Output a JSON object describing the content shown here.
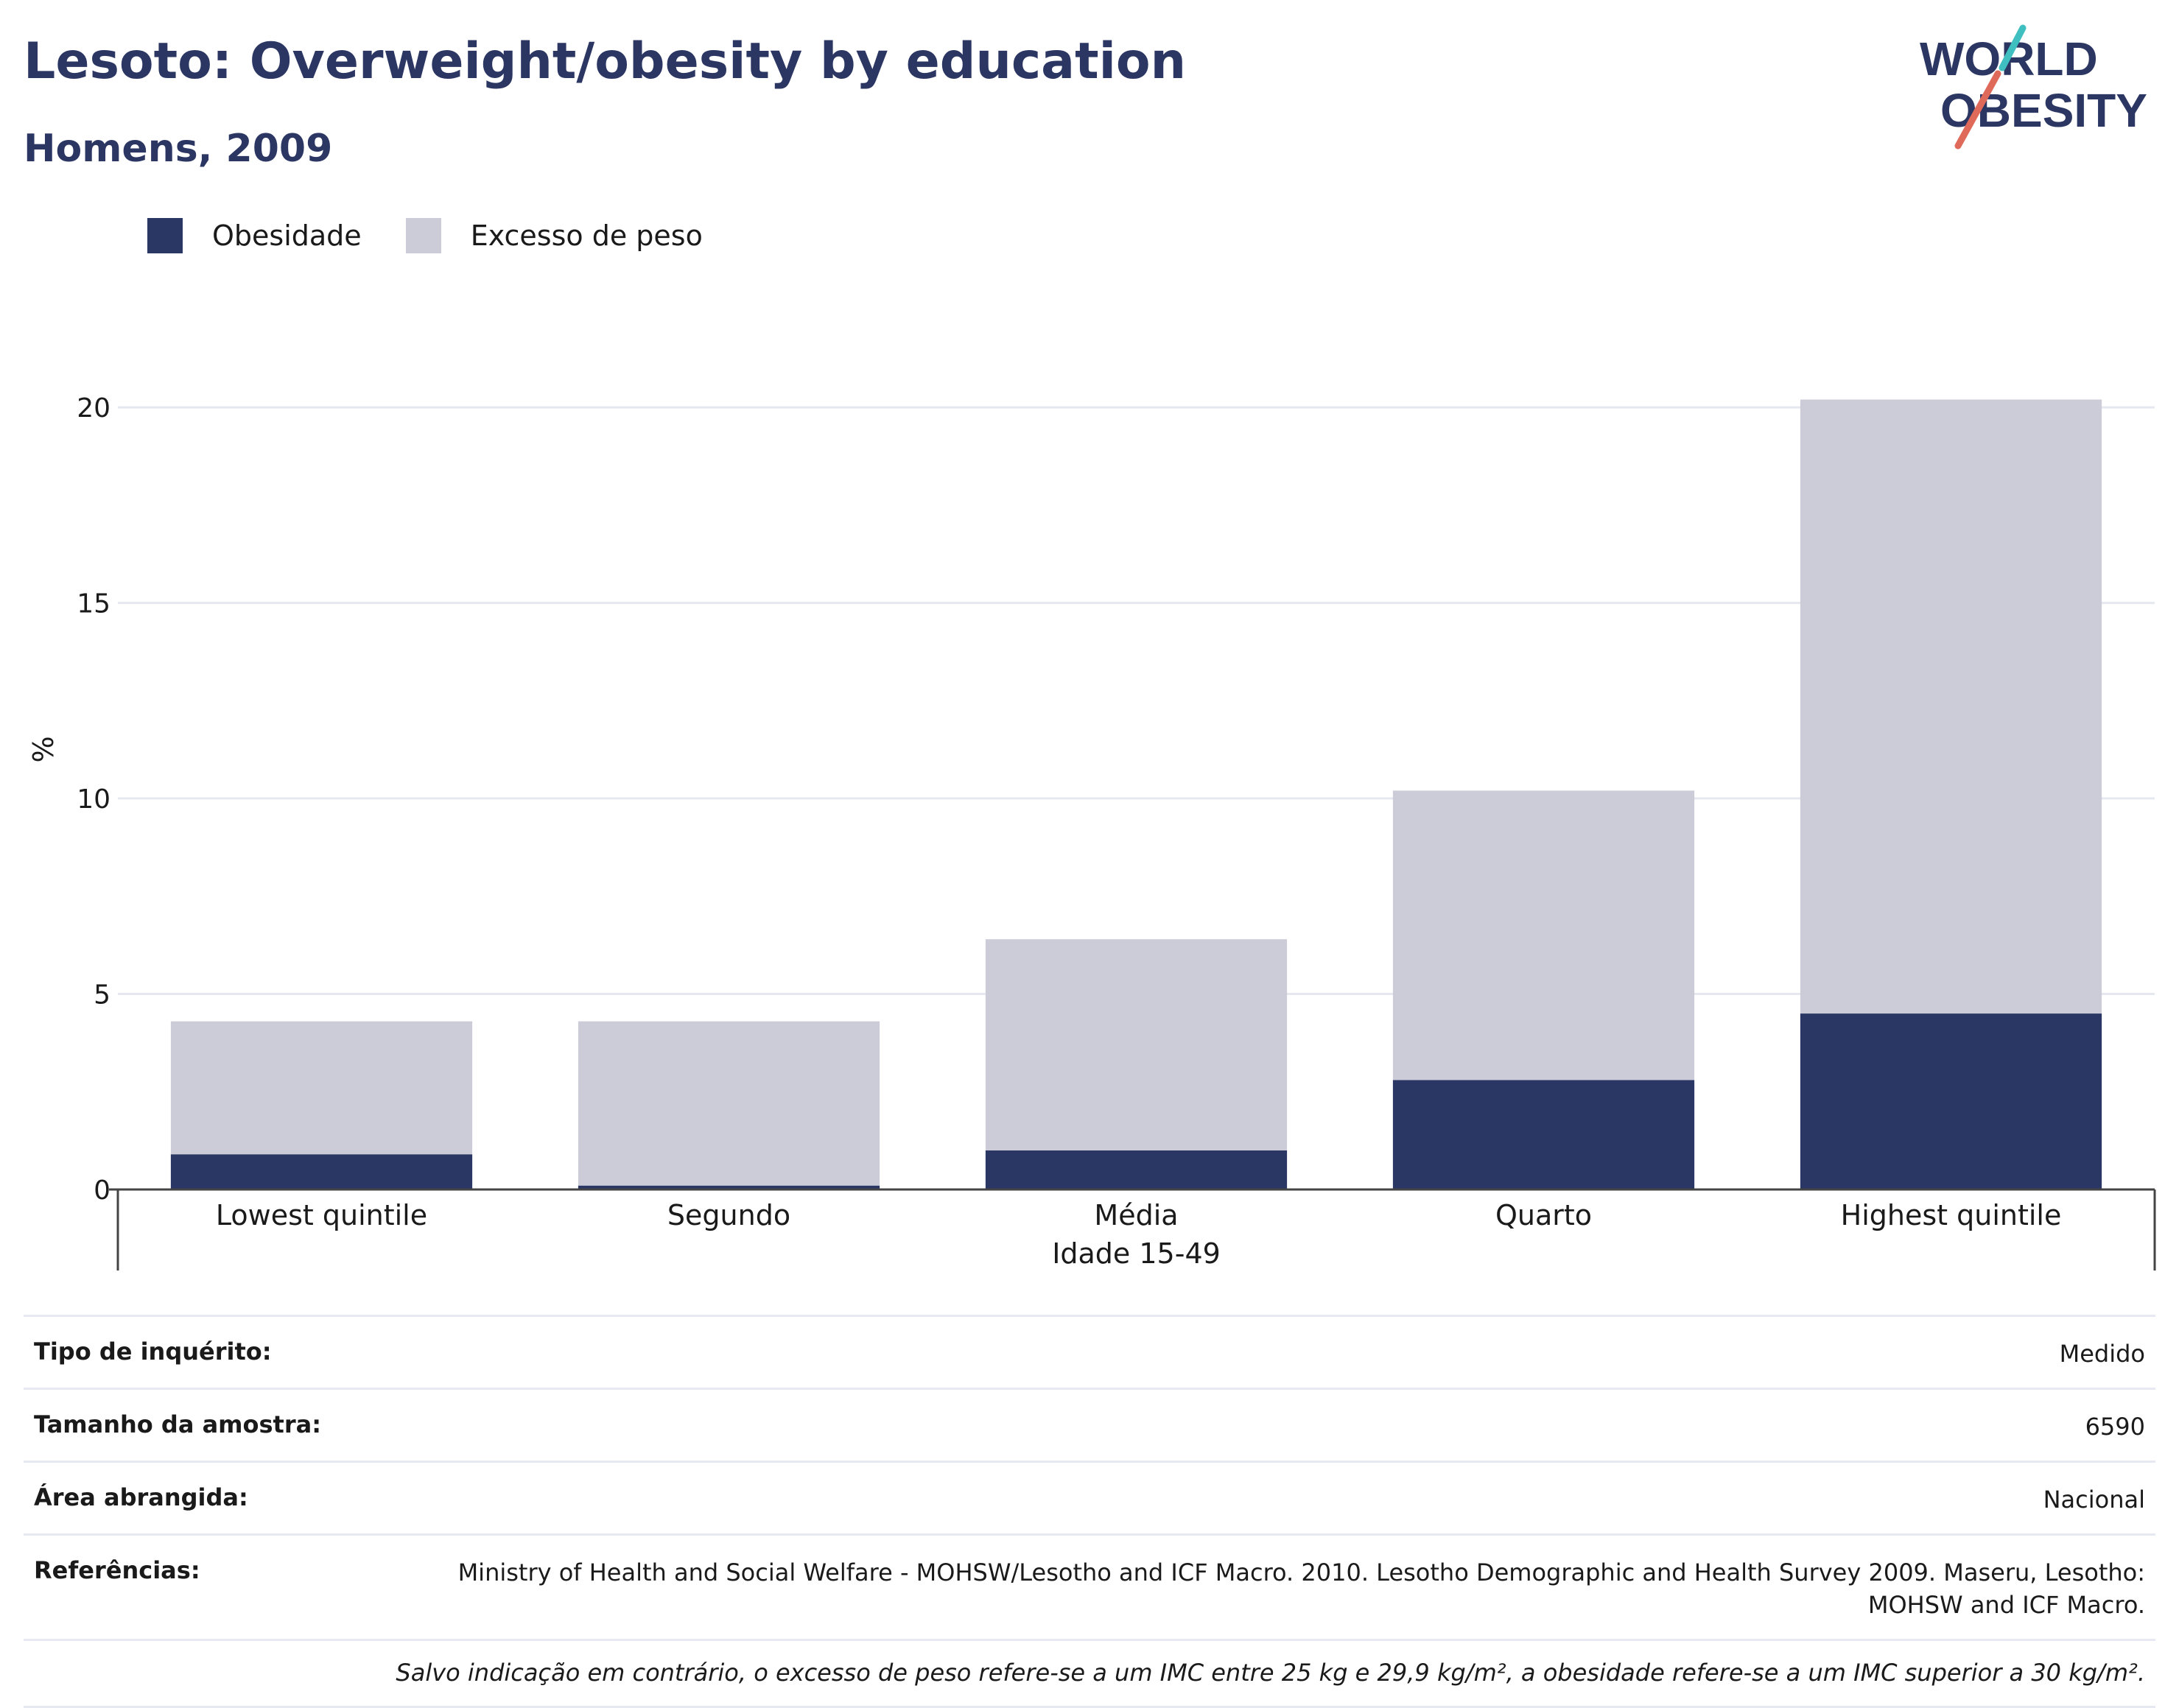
{
  "title": "Lesoto: Overweight/obesity by education",
  "subtitle": "Homens, 2009",
  "logo": {
    "line1": "WORLD",
    "line2": "OBESITY",
    "colors": {
      "text": "#2b3663",
      "accent1": "#e06a5a",
      "accent2": "#3fbfbf"
    }
  },
  "legend": [
    {
      "label": "Obesidade",
      "color": "#2a3663"
    },
    {
      "label": "Excesso de peso",
      "color": "#cbccd8"
    }
  ],
  "chart_data": {
    "type": "bar",
    "stacked": true,
    "categories": [
      "Lowest quintile",
      "Segundo",
      "Média",
      "Quarto",
      "Highest quintile"
    ],
    "series": [
      {
        "name": "Obesidade",
        "values": [
          0.9,
          0.1,
          1.0,
          2.8,
          4.5
        ],
        "color": "#2a3663"
      },
      {
        "name": "Excesso de peso",
        "values": [
          3.4,
          4.2,
          5.4,
          7.4,
          15.7
        ],
        "color": "#cbccd8"
      }
    ],
    "ylabel": "%",
    "xlabel": "Idade 15-49",
    "ylim": [
      0,
      21
    ],
    "yticks": [
      0,
      5,
      10,
      15,
      20
    ],
    "grid": true,
    "legend_position": "top-left"
  },
  "meta": {
    "rows": [
      {
        "label": "Tipo de inquérito:",
        "value": "Medido"
      },
      {
        "label": "Tamanho da amostra:",
        "value": "6590"
      },
      {
        "label": "Área abrangida:",
        "value": "Nacional"
      },
      {
        "label": "Referências:",
        "value": "Ministry of Health and Social Welfare - MOHSW/Lesotho and ICF Macro. 2010. Lesotho Demographic and Health Survey 2009. Maseru, Lesotho: MOHSW and ICF Macro."
      }
    ],
    "note": "Salvo indicação em contrário, o excesso de peso refere-se a um IMC entre 25 kg e 29,9 kg/m², a obesidade refere-se a um IMC superior a 30 kg/m²."
  }
}
